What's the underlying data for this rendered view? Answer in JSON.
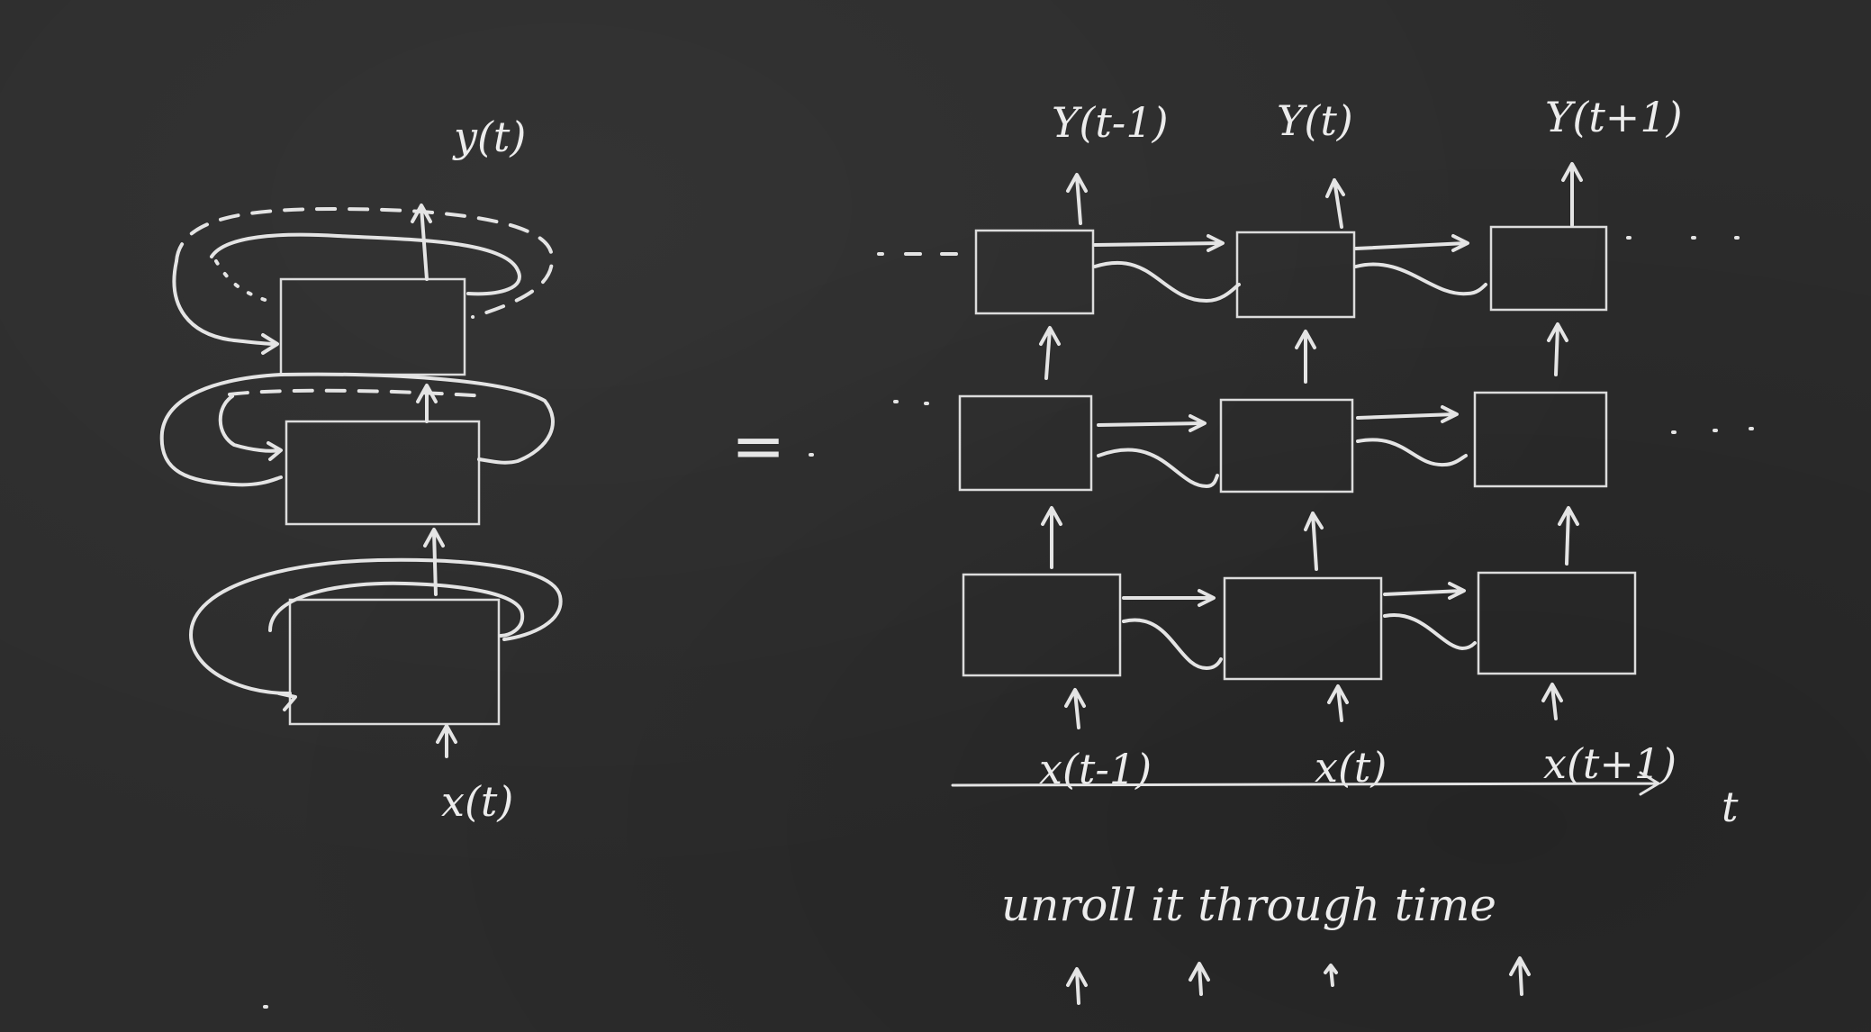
{
  "folded": {
    "output_label": "y(t)",
    "input_label": "x(t)"
  },
  "equals_sign": "=",
  "unrolled": {
    "outputs": [
      "Y(t-1)",
      "Y(t)",
      "Y(t+1)"
    ],
    "inputs": [
      "x(t-1)",
      "x(t)",
      "x(t+1)"
    ],
    "time_axis_label": "t"
  },
  "caption": "unroll it through time"
}
